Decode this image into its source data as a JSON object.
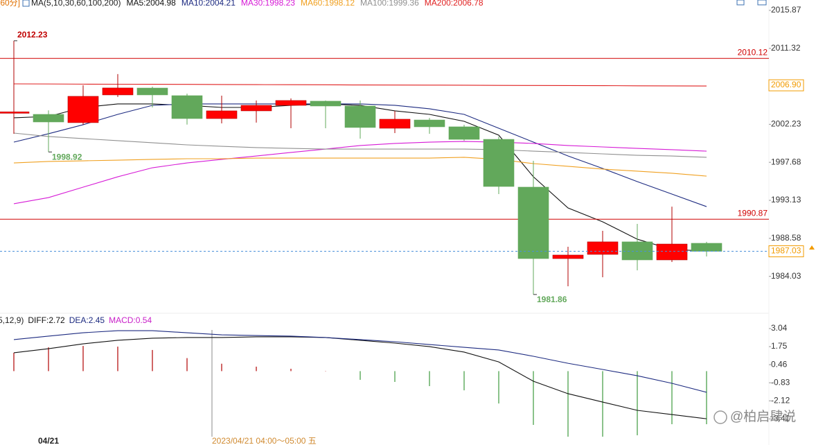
{
  "chart_data": [
    {
      "type": "candlestick",
      "period": "[60分]",
      "indicator": "MA(5,10,30,60,100,200)",
      "open": [
        2003.55,
        2003.42,
        2002.43,
        2005.75,
        2006.57,
        2005.66,
        2002.92,
        2003.84,
        2004.5,
        2005.0,
        2004.42,
        2001.76,
        2002.75,
        2001.93,
        2000.43,
        1994.71,
        1986.16,
        1986.66,
        1988.16,
        1986.0,
        1987.99
      ],
      "high": [
        2012.23,
        2003.9,
        2006.91,
        2008.24,
        2006.74,
        2005.9,
        2005.66,
        2005.08,
        2005.33,
        2005.08,
        2005.08,
        2003.84,
        2003.0,
        2002.18,
        2000.77,
        1997.86,
        1987.57,
        1989.48,
        1990.31,
        1992.38,
        1988.16
      ],
      "low": [
        2001.1,
        1998.92,
        2002.2,
        2005.5,
        2004.25,
        2002.2,
        2002.34,
        2002.43,
        2001.76,
        2001.76,
        2000.52,
        2001.18,
        2001.1,
        2000.27,
        1993.88,
        1981.86,
        1982.84,
        1983.92,
        1984.75,
        1985.75,
        1986.41
      ],
      "close": [
        2003.72,
        2002.51,
        2005.58,
        2006.58,
        2005.75,
        2002.92,
        2003.84,
        2004.5,
        2005.08,
        2004.42,
        2001.85,
        2002.84,
        2001.93,
        2000.43,
        1994.79,
        1986.16,
        1986.58,
        1988.16,
        1986.0,
        1987.9,
        1987.03
      ],
      "up_color": "#ff0000",
      "down_color": "#62a85b",
      "series": [
        {
          "name": "MA5:2004.98",
          "color": "#111111",
          "values": [
            2003.01,
            2003.17,
            2004.25,
            2004.67,
            2004.67,
            2004.5,
            2004.25,
            2004.25,
            2004.5,
            2004.67,
            2004.5,
            2003.84,
            2003.42,
            2002.59,
            2000.93,
            1995.95,
            1992.22,
            1990.56,
            1988.48,
            1987.24,
            1987.07
          ]
        },
        {
          "name": "MA10:2004.21",
          "color": "#1c2a80",
          "values": [
            2000.1,
            2001.1,
            2002.18,
            2003.42,
            2004.5,
            2004.67,
            2004.67,
            2004.67,
            2004.67,
            2004.67,
            2004.67,
            2004.5,
            2004.09,
            2003.42,
            2001.76,
            2000.1,
            1998.44,
            1996.95,
            1995.37,
            1993.88,
            1992.38
          ]
        },
        {
          "name": "MA30:1998.23",
          "color": "#d61ad6",
          "values": [
            1992.72,
            1993.46,
            1994.71,
            1995.95,
            1997.03,
            1997.61,
            1998.03,
            1998.44,
            1998.86,
            1999.27,
            1999.69,
            1999.94,
            2000.1,
            2000.18,
            2000.1,
            1999.94,
            1999.69,
            1999.52,
            1999.35,
            1999.19,
            1999.02
          ]
        },
        {
          "name": "MA60:1998.12",
          "color": "#f0a020",
          "values": [
            1997.61,
            1997.78,
            1997.86,
            1997.94,
            1998.03,
            1998.11,
            1998.11,
            1998.19,
            1998.19,
            1998.19,
            1998.19,
            1998.19,
            1998.19,
            1998.28,
            1998.03,
            1997.53,
            1997.2,
            1996.87,
            1996.62,
            1996.37,
            1996.03
          ]
        },
        {
          "name": "MA100:1999.36",
          "color": "#909090",
          "values": [
            2001.18,
            2000.77,
            2000.52,
            2000.27,
            2000.02,
            1999.77,
            1999.6,
            1999.44,
            1999.35,
            1999.27,
            1999.27,
            1999.27,
            1999.27,
            1999.27,
            1999.19,
            1999.02,
            1998.86,
            1998.69,
            1998.52,
            1998.44,
            1998.28
          ]
        },
        {
          "name": "MA200:2006.78",
          "color": "#e02020",
          "values": [
            2007.07,
            2007.06,
            2007.04,
            2007.03,
            2007.02,
            2007.01,
            2006.99,
            2006.98,
            2006.97,
            2006.96,
            2006.94,
            2006.93,
            2006.92,
            2006.91,
            2006.89,
            2006.88,
            2006.87,
            2006.86,
            2006.84,
            2006.83,
            2006.82
          ]
        }
      ],
      "levels": [
        {
          "value": 2010.12,
          "color": "#d00000"
        },
        {
          "value": 1990.87,
          "color": "#d00000"
        }
      ],
      "marker_labels": [
        {
          "value": 2006.9,
          "label": "2006.90",
          "color": "#f29b00"
        }
      ],
      "last_price_color": "#4a90d9",
      "last_label_color": "#f29b00",
      "ylim": [
        1979.94,
        2017.11
      ],
      "yticks": [
        2015.87,
        2011.32,
        2006.77,
        2002.23,
        1997.68,
        1993.13,
        1988.58,
        1984.03
      ]
    },
    {
      "type": "macd",
      "title": "5,12,9)",
      "categories": [
        null,
        "04/21",
        null,
        null,
        null,
        null,
        null,
        null,
        null,
        null,
        null,
        null,
        null,
        null,
        null,
        null,
        null,
        null,
        null,
        null,
        null
      ],
      "cursor_label": "2023/04/21 04:00～05:00 五",
      "series": [
        {
          "name": "DIFF:2.72",
          "color": "#111111",
          "values": [
            1.31,
            1.6,
            1.95,
            2.2,
            2.35,
            2.4,
            2.4,
            2.45,
            2.45,
            2.4,
            2.2,
            2.0,
            1.75,
            1.36,
            0.66,
            -0.72,
            -1.61,
            -2.21,
            -2.8,
            -3.1,
            -3.4
          ]
        },
        {
          "name": "DEA:2.45",
          "color": "#1c2a80",
          "values": [
            2.25,
            2.5,
            2.74,
            2.89,
            2.89,
            2.74,
            2.59,
            2.54,
            2.5,
            2.4,
            2.25,
            2.1,
            1.9,
            1.7,
            1.51,
            1.06,
            0.56,
            0.12,
            -0.33,
            -0.87,
            -1.51
          ]
        }
      ],
      "histogram": {
        "name": "MACD:0.54",
        "color": "#c81ec8",
        "up_color": "#b00000",
        "down_color": "#3c9a3c",
        "values": [
          1.31,
          1.7,
          1.8,
          1.75,
          1.51,
          0.93,
          0.53,
          0.32,
          0.17,
          0.02,
          -0.62,
          -0.77,
          -1.07,
          -1.37,
          -2.31,
          -3.84,
          -4.68,
          -4.68,
          -4.58,
          -3.79,
          -3.79
        ]
      },
      "ylim": [
        -4.68,
        3.98
      ],
      "yticks": [
        3.04,
        1.75,
        0.46,
        -0.83,
        -2.12,
        -3.41
      ]
    }
  ],
  "watermark": "@柏启肆说"
}
